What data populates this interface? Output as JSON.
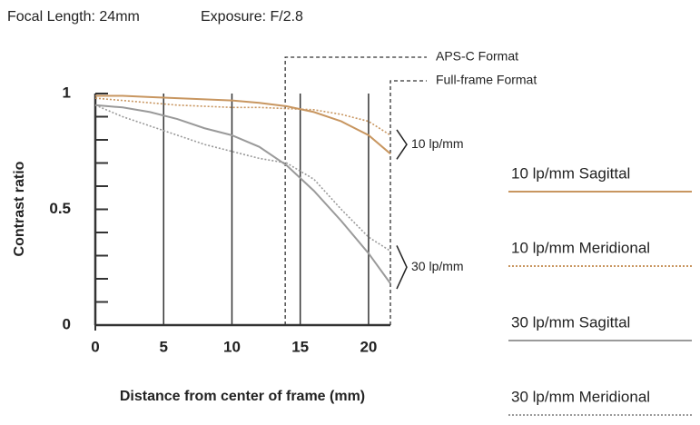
{
  "chart_data": {
    "type": "line",
    "title": "Focal Length: 24mm",
    "subtitle": "Exposure: F/2.8",
    "x_label": "Distance from center of frame (mm)",
    "y_label": "Contrast ratio",
    "x": [
      0,
      2,
      4,
      6,
      8,
      10,
      12,
      14,
      16,
      18,
      20,
      21.6
    ],
    "series": [
      {
        "name": "10 lp/mm Sagittal",
        "color": "#c89660",
        "dash": false,
        "values": [
          0.99,
          0.99,
          0.985,
          0.98,
          0.975,
          0.97,
          0.96,
          0.945,
          0.92,
          0.88,
          0.82,
          0.74
        ]
      },
      {
        "name": "10 lp/mm Meridional",
        "color": "#c89660",
        "dash": true,
        "values": [
          0.98,
          0.97,
          0.96,
          0.95,
          0.945,
          0.94,
          0.94,
          0.935,
          0.93,
          0.91,
          0.88,
          0.82
        ]
      },
      {
        "name": "30 lp/mm Sagittal",
        "color": "#9a9a9a",
        "dash": false,
        "values": [
          0.95,
          0.94,
          0.92,
          0.89,
          0.85,
          0.82,
          0.77,
          0.69,
          0.58,
          0.45,
          0.31,
          0.18
        ]
      },
      {
        "name": "30 lp/mm Meridional",
        "color": "#9a9a9a",
        "dash": true,
        "values": [
          0.95,
          0.9,
          0.86,
          0.82,
          0.78,
          0.75,
          0.72,
          0.7,
          0.63,
          0.5,
          0.38,
          0.32
        ]
      }
    ],
    "xlim": [
      0,
      21.6
    ],
    "ylim": [
      0,
      1
    ],
    "xticks": [
      0,
      5,
      10,
      15,
      20
    ],
    "yticks": [
      0,
      0.5,
      1
    ],
    "yminor_ticks": [
      0.1,
      0.2,
      0.3,
      0.4,
      0.6,
      0.7,
      0.8,
      0.9
    ],
    "format_lines": [
      {
        "label": "APS-C Format",
        "x": 13.9
      },
      {
        "label": "Full-frame Format",
        "x": 21.6
      }
    ],
    "group_labels": [
      {
        "label": "10 lp/mm",
        "range": [
          0.74,
          0.82
        ]
      },
      {
        "label": "30 lp/mm",
        "range": [
          0.18,
          0.32
        ]
      }
    ]
  }
}
